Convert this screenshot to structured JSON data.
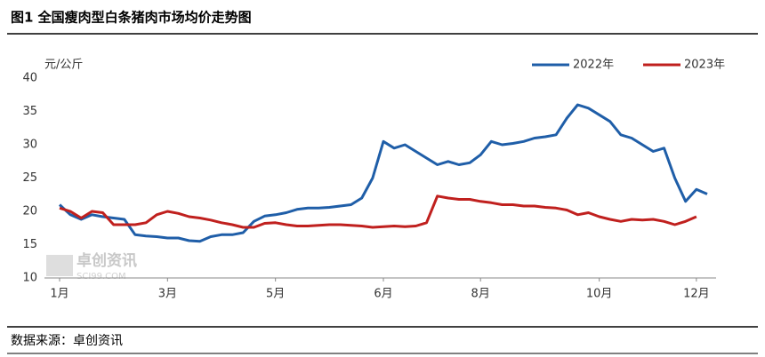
{
  "chart_data": {
    "type": "line",
    "title": "图1 全国瘦肉型白条猪肉市场均价走势图",
    "y_label": "元/公斤",
    "source": "数据来源：卓创资讯",
    "watermark": "卓创资讯",
    "watermark_sub": "SCI99.COM",
    "categories": [
      "1月",
      null,
      null,
      null,
      null,
      null,
      null,
      null,
      null,
      null,
      "3月",
      null,
      null,
      null,
      null,
      null,
      null,
      null,
      null,
      null,
      "5月",
      null,
      null,
      null,
      null,
      null,
      null,
      null,
      null,
      null,
      "6月",
      null,
      null,
      null,
      null,
      null,
      null,
      null,
      null,
      "8月",
      null,
      null,
      null,
      null,
      null,
      null,
      null,
      null,
      null,
      null,
      "10月",
      null,
      null,
      null,
      null,
      null,
      null,
      null,
      null,
      "12月",
      null
    ],
    "series": [
      {
        "name": "2022年",
        "color": "#1f5ea8",
        "values": [
          21,
          19.5,
          18.8,
          19.5,
          19.2,
          19,
          18.8,
          16.5,
          16.3,
          16.2,
          16,
          16,
          15.6,
          15.5,
          16.2,
          16.5,
          16.5,
          16.8,
          18.5,
          19.3,
          19.5,
          19.8,
          20.3,
          20.5,
          20.5,
          20.6,
          20.8,
          21,
          22,
          25,
          30.5,
          29.5,
          30,
          29,
          28,
          27,
          27.5,
          27,
          27.3,
          28.5,
          30.5,
          30,
          30.2,
          30.5,
          31,
          31.2,
          31.5,
          34,
          36,
          35.5,
          34.5,
          33.5,
          31.5,
          31,
          30,
          29,
          29.5,
          25,
          21.5,
          23.3,
          22.6
        ]
      },
      {
        "name": "2023年",
        "color": "#c0201e",
        "values": [
          20.5,
          20,
          19,
          20,
          19.8,
          18,
          18,
          18,
          18.3,
          19.5,
          20,
          19.7,
          19.2,
          19,
          18.7,
          18.3,
          18,
          17.6,
          17.6,
          18.2,
          18.3,
          18,
          17.8,
          17.8,
          17.9,
          18,
          18,
          17.9,
          17.8,
          17.6,
          17.7,
          17.8,
          17.7,
          17.8,
          18.3,
          22.3,
          22,
          21.8,
          21.8,
          21.5,
          21.3,
          21,
          21,
          20.8,
          20.8,
          20.6,
          20.5,
          20.2,
          19.5,
          19.8,
          19.2,
          18.8,
          18.5,
          18.8,
          18.7,
          18.8,
          18.5,
          18,
          18.5,
          19.2,
          null
        ]
      }
    ],
    "ylim": [
      10,
      40
    ],
    "yticks": [
      10,
      15,
      20,
      25,
      30,
      35,
      40
    ],
    "grid": false,
    "legend": "top-right"
  }
}
